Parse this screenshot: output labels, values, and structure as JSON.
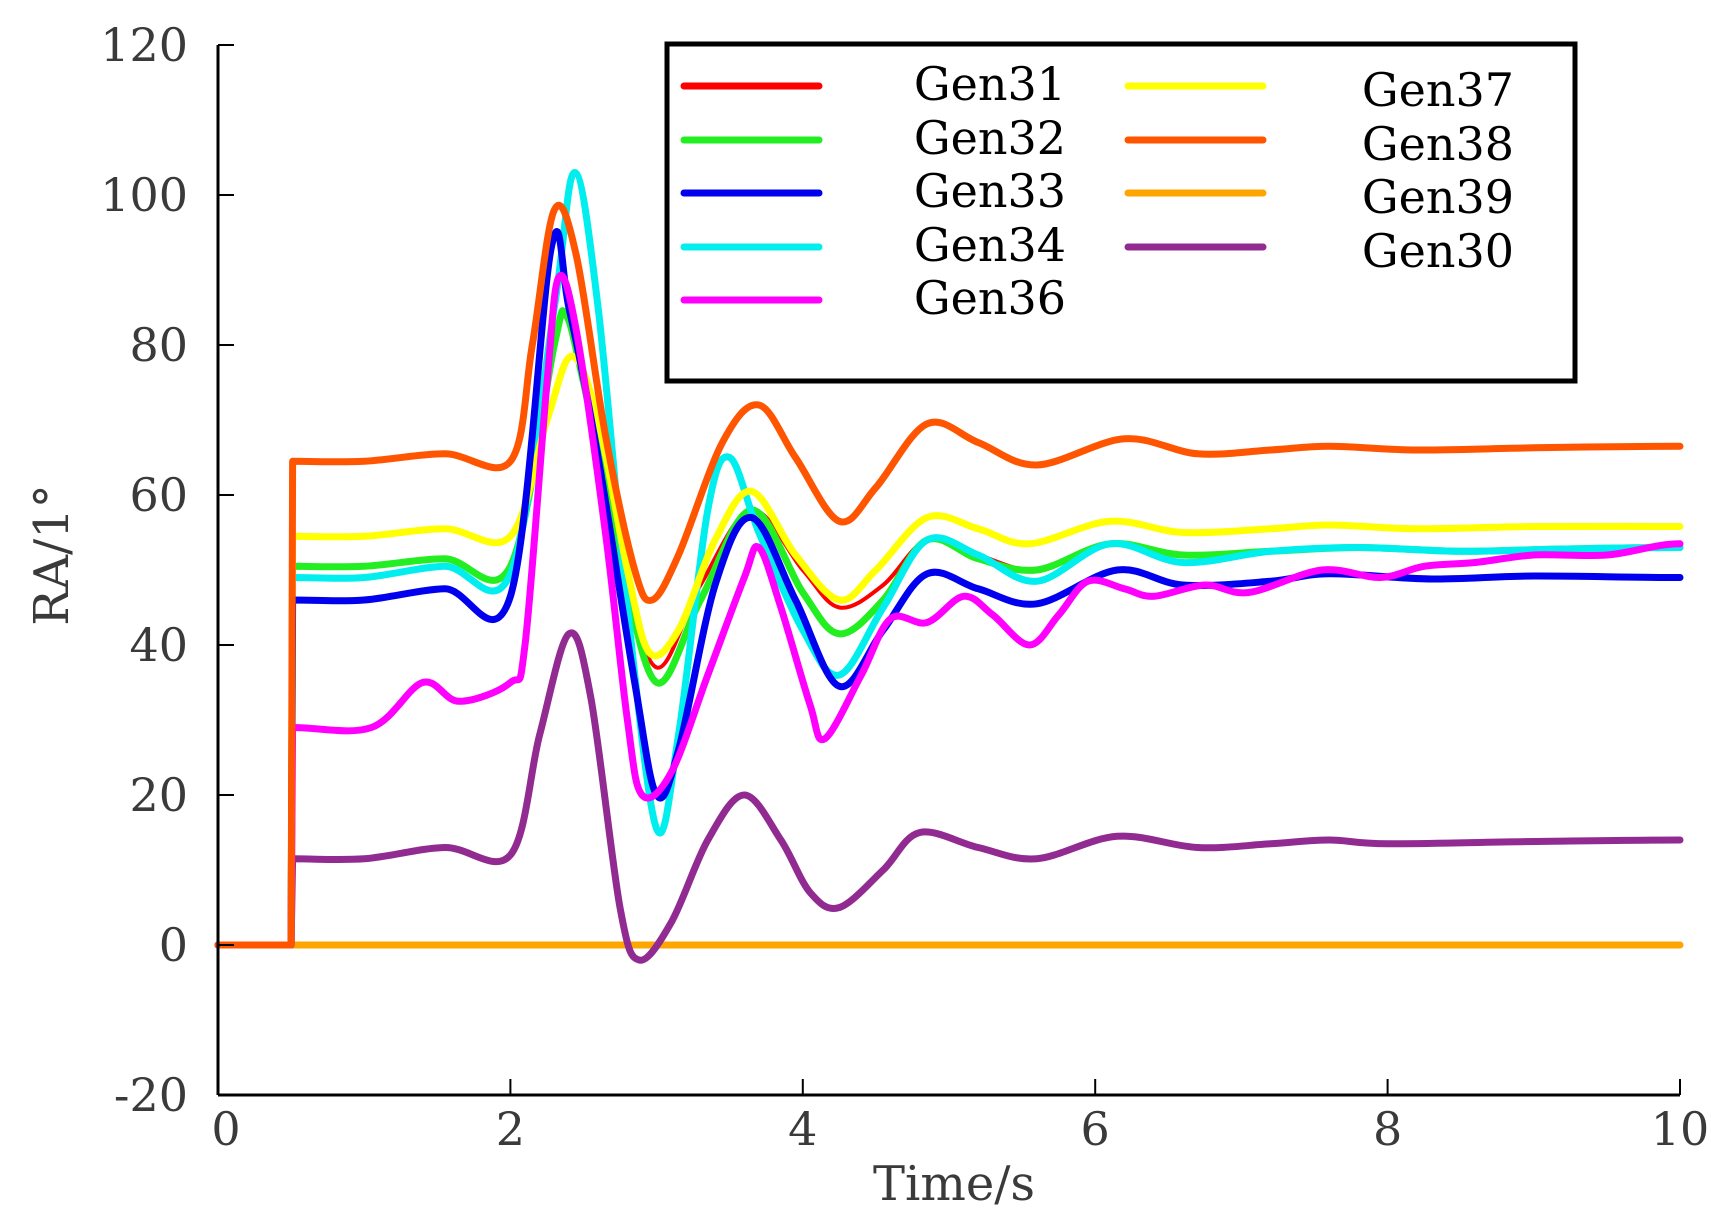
{
  "chart_data": {
    "type": "line",
    "title": "",
    "xlabel": "Time/s",
    "ylabel": "RA/1°",
    "xlim": [
      0,
      10
    ],
    "ylim": [
      -20,
      120
    ],
    "xticks": [
      0,
      2,
      4,
      6,
      8,
      10
    ],
    "yticks": [
      -20,
      0,
      20,
      40,
      60,
      80,
      100,
      120
    ],
    "legend_position": "top-right",
    "series": [
      {
        "name": "Gen31",
        "color": "#ff0000",
        "points": [
          [
            0,
            0
          ],
          [
            0.5,
            0
          ],
          [
            0.51,
            50.5
          ],
          [
            1.0,
            50.5
          ],
          [
            1.55,
            51.5
          ],
          [
            2.0,
            50.5
          ],
          [
            2.3,
            80
          ],
          [
            2.38,
            84
          ],
          [
            2.5,
            75
          ],
          [
            2.75,
            52
          ],
          [
            3.0,
            37
          ],
          [
            3.3,
            48
          ],
          [
            3.65,
            58
          ],
          [
            4.0,
            50
          ],
          [
            4.25,
            45
          ],
          [
            4.55,
            48
          ],
          [
            4.85,
            54
          ],
          [
            5.2,
            52
          ],
          [
            5.6,
            50
          ],
          [
            6.1,
            53.5
          ],
          [
            6.6,
            52
          ],
          [
            7.2,
            52.5
          ],
          [
            7.8,
            53
          ],
          [
            8.5,
            52.5
          ],
          [
            9.2,
            52.8
          ],
          [
            10,
            53
          ]
        ]
      },
      {
        "name": "Gen32",
        "color": "#22ee22",
        "points": [
          [
            0,
            0
          ],
          [
            0.5,
            0
          ],
          [
            0.51,
            50.5
          ],
          [
            1.0,
            50.5
          ],
          [
            1.55,
            51.5
          ],
          [
            2.0,
            50.5
          ],
          [
            2.3,
            80
          ],
          [
            2.38,
            84
          ],
          [
            2.5,
            75
          ],
          [
            2.75,
            52
          ],
          [
            3.0,
            35
          ],
          [
            3.3,
            46
          ],
          [
            3.65,
            58
          ],
          [
            4.0,
            47
          ],
          [
            4.25,
            41.5
          ],
          [
            4.55,
            46
          ],
          [
            4.85,
            54
          ],
          [
            5.2,
            51.5
          ],
          [
            5.6,
            50
          ],
          [
            6.1,
            53.5
          ],
          [
            6.6,
            52
          ],
          [
            7.2,
            52.5
          ],
          [
            7.8,
            53
          ],
          [
            8.5,
            52.5
          ],
          [
            9.2,
            52.8
          ],
          [
            10,
            53
          ]
        ]
      },
      {
        "name": "Gen33",
        "color": "#0000ee",
        "points": [
          [
            0,
            0
          ],
          [
            0.5,
            0
          ],
          [
            0.51,
            46
          ],
          [
            1.0,
            46
          ],
          [
            1.55,
            47.5
          ],
          [
            2.0,
            46.5
          ],
          [
            2.28,
            93
          ],
          [
            2.4,
            85
          ],
          [
            2.6,
            65
          ],
          [
            2.85,
            35
          ],
          [
            3.0,
            20
          ],
          [
            3.15,
            26
          ],
          [
            3.4,
            48
          ],
          [
            3.65,
            57
          ],
          [
            3.95,
            46
          ],
          [
            4.25,
            34.5
          ],
          [
            4.55,
            42
          ],
          [
            4.85,
            49.5
          ],
          [
            5.2,
            47.5
          ],
          [
            5.6,
            45.5
          ],
          [
            6.15,
            50
          ],
          [
            6.6,
            48
          ],
          [
            7.2,
            48.5
          ],
          [
            7.6,
            49.5
          ],
          [
            8.3,
            48.8
          ],
          [
            9.0,
            49.2
          ],
          [
            10,
            49
          ]
        ]
      },
      {
        "name": "Gen34",
        "color": "#00eeee",
        "points": [
          [
            0,
            0
          ],
          [
            0.5,
            0
          ],
          [
            0.51,
            49
          ],
          [
            1.0,
            49
          ],
          [
            1.55,
            50.5
          ],
          [
            2.0,
            49.5
          ],
          [
            2.3,
            85
          ],
          [
            2.44,
            103
          ],
          [
            2.6,
            85
          ],
          [
            2.8,
            45
          ],
          [
            3.0,
            15.5
          ],
          [
            3.15,
            28
          ],
          [
            3.35,
            58
          ],
          [
            3.5,
            65
          ],
          [
            3.7,
            55
          ],
          [
            4.0,
            42
          ],
          [
            4.25,
            36
          ],
          [
            4.55,
            45
          ],
          [
            4.85,
            54
          ],
          [
            5.2,
            52
          ],
          [
            5.6,
            48.5
          ],
          [
            6.1,
            53.5
          ],
          [
            6.6,
            51
          ],
          [
            7.2,
            52.5
          ],
          [
            7.8,
            53
          ],
          [
            8.5,
            52.5
          ],
          [
            9.2,
            52.8
          ],
          [
            10,
            53
          ]
        ]
      },
      {
        "name": "Gen36",
        "color": "#ff00ff",
        "points": [
          [
            0,
            0
          ],
          [
            0.5,
            0
          ],
          [
            0.51,
            29
          ],
          [
            1.05,
            29
          ],
          [
            1.4,
            35
          ],
          [
            1.65,
            32.5
          ],
          [
            2.0,
            35
          ],
          [
            2.1,
            40
          ],
          [
            2.25,
            75
          ],
          [
            2.33,
            89
          ],
          [
            2.45,
            82
          ],
          [
            2.65,
            55
          ],
          [
            2.8,
            30
          ],
          [
            2.9,
            20
          ],
          [
            3.1,
            23
          ],
          [
            3.35,
            36
          ],
          [
            3.6,
            49
          ],
          [
            3.7,
            53
          ],
          [
            3.85,
            45
          ],
          [
            4.05,
            32
          ],
          [
            4.15,
            27.5
          ],
          [
            4.4,
            36
          ],
          [
            4.6,
            43.5
          ],
          [
            4.85,
            43
          ],
          [
            5.1,
            46.5
          ],
          [
            5.3,
            44
          ],
          [
            5.55,
            40
          ],
          [
            5.75,
            44
          ],
          [
            5.95,
            48.5
          ],
          [
            6.2,
            47.5
          ],
          [
            6.4,
            46.5
          ],
          [
            6.75,
            48
          ],
          [
            7.05,
            47
          ],
          [
            7.55,
            50
          ],
          [
            7.95,
            49
          ],
          [
            8.25,
            50.5
          ],
          [
            8.6,
            51
          ],
          [
            9.0,
            52
          ],
          [
            9.5,
            52
          ],
          [
            10,
            53.5
          ]
        ]
      },
      {
        "name": "Gen37",
        "color": "#ffff00",
        "points": [
          [
            0,
            0
          ],
          [
            0.5,
            0
          ],
          [
            0.51,
            54.5
          ],
          [
            1.0,
            54.5
          ],
          [
            1.55,
            55.5
          ],
          [
            2.0,
            54.5
          ],
          [
            2.25,
            70
          ],
          [
            2.42,
            78.5
          ],
          [
            2.6,
            70
          ],
          [
            2.8,
            50
          ],
          [
            2.95,
            39
          ],
          [
            3.15,
            42
          ],
          [
            3.4,
            54
          ],
          [
            3.65,
            60.5
          ],
          [
            3.95,
            52
          ],
          [
            4.25,
            46
          ],
          [
            4.5,
            50
          ],
          [
            4.85,
            57
          ],
          [
            5.2,
            55.5
          ],
          [
            5.55,
            53.5
          ],
          [
            6.1,
            56.5
          ],
          [
            6.6,
            55
          ],
          [
            7.2,
            55.5
          ],
          [
            7.6,
            56
          ],
          [
            8.2,
            55.5
          ],
          [
            9.0,
            55.8
          ],
          [
            10,
            55.8
          ]
        ]
      },
      {
        "name": "Gen38",
        "color": "#ff5500",
        "points": [
          [
            0,
            0
          ],
          [
            0.5,
            0
          ],
          [
            0.51,
            64.5
          ],
          [
            1.0,
            64.5
          ],
          [
            1.55,
            65.5
          ],
          [
            2.0,
            64.5
          ],
          [
            2.15,
            80
          ],
          [
            2.3,
            98
          ],
          [
            2.45,
            92
          ],
          [
            2.65,
            68
          ],
          [
            2.85,
            50
          ],
          [
            2.97,
            46
          ],
          [
            3.15,
            52
          ],
          [
            3.45,
            67
          ],
          [
            3.7,
            72
          ],
          [
            3.95,
            65
          ],
          [
            4.25,
            56.5
          ],
          [
            4.5,
            61
          ],
          [
            4.85,
            69.5
          ],
          [
            5.2,
            67
          ],
          [
            5.6,
            64
          ],
          [
            6.2,
            67.5
          ],
          [
            6.7,
            65.5
          ],
          [
            7.2,
            66
          ],
          [
            7.6,
            66.5
          ],
          [
            8.2,
            66
          ],
          [
            9.0,
            66.3
          ],
          [
            10,
            66.5
          ]
        ]
      },
      {
        "name": "Gen39",
        "color": "#ffa500",
        "points": [
          [
            0,
            0
          ],
          [
            10,
            0
          ]
        ]
      },
      {
        "name": "Gen30",
        "color": "#922b91",
        "points": [
          [
            0,
            0
          ],
          [
            0.5,
            0
          ],
          [
            0.51,
            11.5
          ],
          [
            1.0,
            11.5
          ],
          [
            1.55,
            13
          ],
          [
            2.0,
            12
          ],
          [
            2.2,
            28
          ],
          [
            2.4,
            41.5
          ],
          [
            2.55,
            33
          ],
          [
            2.75,
            5
          ],
          [
            2.88,
            -2
          ],
          [
            3.1,
            3
          ],
          [
            3.35,
            14
          ],
          [
            3.6,
            20
          ],
          [
            3.85,
            14
          ],
          [
            4.05,
            7
          ],
          [
            4.25,
            5
          ],
          [
            4.55,
            10
          ],
          [
            4.8,
            15
          ],
          [
            5.2,
            13
          ],
          [
            5.6,
            11.5
          ],
          [
            6.15,
            14.5
          ],
          [
            6.7,
            13
          ],
          [
            7.2,
            13.5
          ],
          [
            7.6,
            14
          ],
          [
            8.0,
            13.5
          ],
          [
            9.0,
            13.8
          ],
          [
            10,
            14
          ]
        ]
      }
    ]
  }
}
